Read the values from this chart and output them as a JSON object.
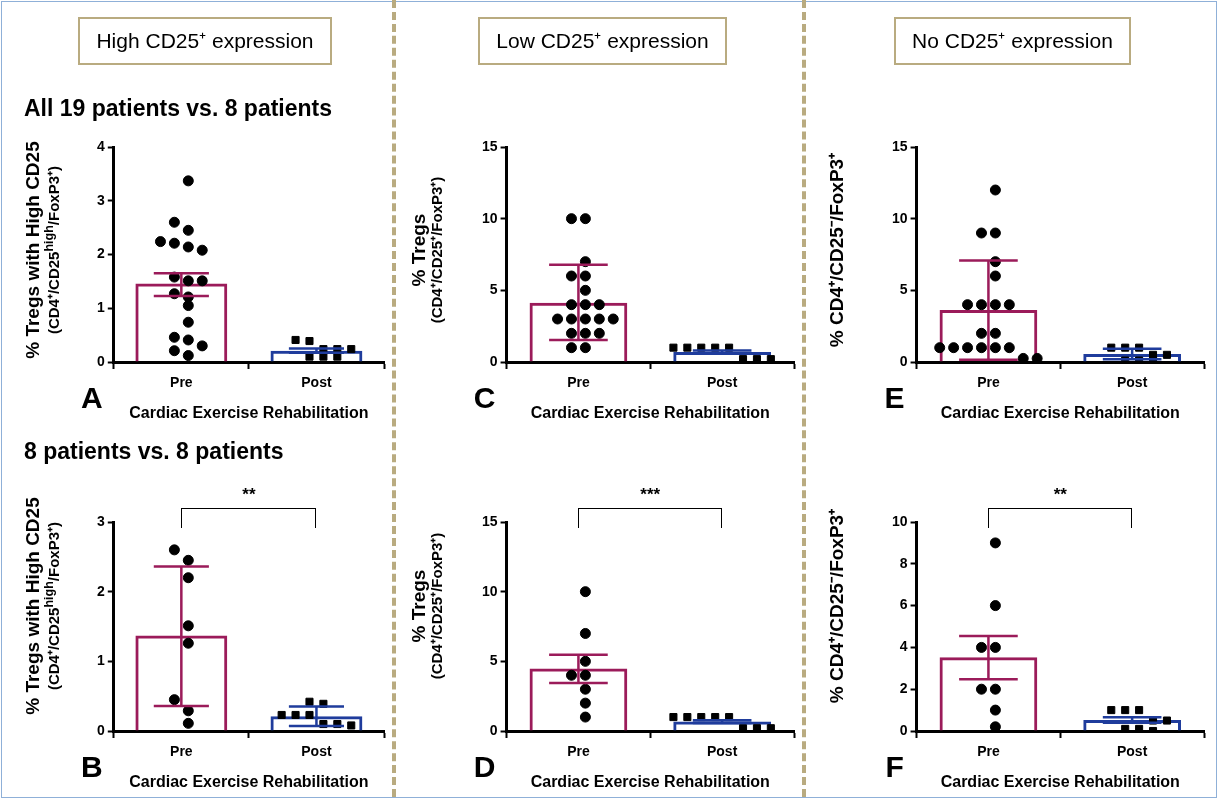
{
  "chart_data": [
    {
      "type": "bar",
      "title": "High CD25⁺ expression",
      "subtitle": "All 19 patients vs. 8 patients",
      "xlabel": "Cardiac Exercise Rehabilitation",
      "ylabel": "% Tregs with High CD25\n(CD4⁺/CD25$^{high}$/FoxP3⁺)",
      "categories": [
        "Pre",
        "Post"
      ],
      "ylim": [
        0,
        4
      ],
      "yticks": [
        0,
        1,
        2,
        3,
        4
      ],
      "annotations": [
        "A"
      ],
      "series": [
        {
          "type": "bar",
          "colors": [
            "#9b1b5a",
            "#1f3c9c"
          ],
          "values": [
            1.46,
            0.21
          ],
          "errors": [
            [
              1.23,
              1.65
            ],
            [
              0.17,
              0.25
            ]
          ]
        },
        {
          "type": "scatter",
          "marker": "circle",
          "color": "#000000",
          "x": [
            "Pre",
            "Pre",
            "Pre",
            "Pre",
            "Pre",
            "Pre",
            "Pre",
            "Pre",
            "Pre",
            "Pre",
            "Pre",
            "Pre",
            "Pre",
            "Pre",
            "Pre",
            "Pre",
            "Pre",
            "Pre",
            "Pre"
          ],
          "values": [
            3.37,
            2.6,
            2.45,
            2.24,
            2.21,
            2.14,
            2.08,
            1.58,
            1.51,
            1.51,
            1.27,
            1.21,
            1.05,
            0.74,
            0.46,
            0.41,
            0.3,
            0.21,
            0.12
          ]
        },
        {
          "type": "scatter",
          "marker": "square",
          "color": "#000000",
          "x": [
            "Post",
            "Post",
            "Post",
            "Post",
            "Post",
            "Post",
            "Post",
            "Post"
          ],
          "values": [
            0.41,
            0.39,
            0.24,
            0.24,
            0.24,
            0.1,
            0.1,
            0.1
          ]
        }
      ]
    },
    {
      "type": "bar",
      "title": "Low CD25⁺ expression",
      "xlabel": "Cardiac Exercise Rehabilitation",
      "ylabel": "% Tregs\n(CD4⁺/CD25⁺/FoxP3⁺)",
      "categories": [
        "Pre",
        "Post"
      ],
      "ylim": [
        0,
        15
      ],
      "yticks": [
        0,
        5,
        10,
        15
      ],
      "annotations": [
        "C"
      ],
      "series": [
        {
          "type": "bar",
          "colors": [
            "#9b1b5a",
            "#1f3c9c"
          ],
          "values": [
            4.14,
            0.7
          ],
          "errors": [
            [
              1.53,
              6.78
            ],
            [
              0.6,
              0.8
            ]
          ]
        },
        {
          "type": "scatter",
          "marker": "circle",
          "color": "#000000",
          "x": [
            "Pre",
            "Pre",
            "Pre",
            "Pre",
            "Pre",
            "Pre",
            "Pre",
            "Pre",
            "Pre",
            "Pre",
            "Pre",
            "Pre",
            "Pre",
            "Pre",
            "Pre",
            "Pre",
            "Pre",
            "Pre",
            "Pre"
          ],
          "values": [
            10,
            10,
            7,
            6,
            6,
            5,
            4,
            4,
            4,
            3,
            3,
            3,
            3,
            3,
            2,
            2,
            2,
            1,
            1
          ]
        },
        {
          "type": "scatter",
          "marker": "square",
          "color": "#000000",
          "x": [
            "Post",
            "Post",
            "Post",
            "Post",
            "Post",
            "Post",
            "Post",
            "Post"
          ],
          "values": [
            1,
            1,
            1,
            1,
            1,
            0.2,
            0.2,
            0.2
          ]
        }
      ]
    },
    {
      "type": "bar",
      "title": "No CD25⁺ expression",
      "xlabel": "Cardiac Exercise Rehabilitation",
      "ylabel": "% CD4⁺/CD25⁻/FoxP3⁺",
      "categories": [
        "Pre",
        "Post"
      ],
      "ylim": [
        0,
        15
      ],
      "yticks": [
        0,
        5,
        10,
        15
      ],
      "annotations": [
        "E"
      ],
      "series": [
        {
          "type": "bar",
          "colors": [
            "#9b1b5a",
            "#1f3c9c"
          ],
          "values": [
            3.63,
            0.56
          ],
          "errors": [
            [
              0.15,
              7.09
            ],
            [
              0.2,
              0.93
            ]
          ]
        },
        {
          "type": "scatter",
          "marker": "circle",
          "color": "#000000",
          "x": [
            "Pre",
            "Pre",
            "Pre",
            "Pre",
            "Pre",
            "Pre",
            "Pre",
            "Pre",
            "Pre",
            "Pre",
            "Pre",
            "Pre",
            "Pre",
            "Pre",
            "Pre",
            "Pre",
            "Pre",
            "Pre",
            "Pre"
          ],
          "values": [
            12,
            9,
            9,
            7,
            6,
            4,
            4,
            4,
            4,
            2,
            2,
            1,
            1,
            1,
            1,
            1,
            1,
            0.25,
            0.25
          ]
        },
        {
          "type": "scatter",
          "marker": "square",
          "color": "#000000",
          "x": [
            "Post",
            "Post",
            "Post",
            "Post",
            "Post",
            "Post",
            "Post",
            "Post"
          ],
          "values": [
            1,
            1,
            1,
            0.5,
            0.5,
            0.1,
            0.1,
            0.1
          ]
        }
      ]
    },
    {
      "type": "bar",
      "subtitle": "8 patients vs. 8 patients",
      "xlabel": "Cardiac Exercise Rehabilitation",
      "ylabel": "% Tregs with High CD25\n(CD4⁺/CD25$^{high}$/FoxP3⁺)",
      "categories": [
        "Pre",
        "Post"
      ],
      "ylim": [
        0,
        3
      ],
      "yticks": [
        0,
        1,
        2,
        3
      ],
      "annotations": [
        "B",
        "**"
      ],
      "series": [
        {
          "type": "bar",
          "colors": [
            "#9b1b5a",
            "#1f3c9c"
          ],
          "values": [
            1.37,
            0.21
          ],
          "errors": [
            [
              0.36,
              2.36
            ],
            [
              0.07,
              0.35
            ]
          ]
        },
        {
          "type": "scatter",
          "marker": "circle",
          "color": "#000000",
          "x": [
            "Pre",
            "Pre",
            "Pre",
            "Pre",
            "Pre",
            "Pre",
            "Pre",
            "Pre"
          ],
          "values": [
            2.6,
            2.45,
            2.2,
            1.51,
            1.26,
            0.45,
            0.29,
            0.11
          ]
        },
        {
          "type": "scatter",
          "marker": "square",
          "color": "#000000",
          "x": [
            "Post",
            "Post",
            "Post",
            "Post",
            "Post",
            "Post",
            "Post",
            "Post"
          ],
          "values": [
            0.42,
            0.39,
            0.23,
            0.23,
            0.23,
            0.1,
            0.08,
            0.1
          ]
        }
      ]
    },
    {
      "type": "bar",
      "xlabel": "Cardiac Exercise Rehabilitation",
      "ylabel": "% Tregs\n(CD4⁺/CD25⁺/FoxP3⁺)",
      "categories": [
        "Pre",
        "Post"
      ],
      "ylim": [
        0,
        15
      ],
      "yticks": [
        0,
        5,
        10,
        15
      ],
      "annotations": [
        "D",
        "***"
      ],
      "series": [
        {
          "type": "bar",
          "colors": [
            "#9b1b5a",
            "#1f3c9c"
          ],
          "values": [
            4.48,
            0.68
          ],
          "errors": [
            [
              3.44,
              5.48
            ],
            [
              0.58,
              0.78
            ]
          ]
        },
        {
          "type": "scatter",
          "marker": "circle",
          "color": "#000000",
          "x": [
            "Pre",
            "Pre",
            "Pre",
            "Pre",
            "Pre",
            "Pre",
            "Pre",
            "Pre"
          ],
          "values": [
            10,
            7,
            5,
            4,
            4,
            3,
            2,
            1
          ]
        },
        {
          "type": "scatter",
          "marker": "square",
          "color": "#000000",
          "x": [
            "Post",
            "Post",
            "Post",
            "Post",
            "Post",
            "Post",
            "Post",
            "Post"
          ],
          "values": [
            1,
            1,
            1,
            1,
            1,
            0.2,
            0.2,
            0.2
          ]
        }
      ]
    },
    {
      "type": "bar",
      "xlabel": "Cardiac Exercise Rehabilitation",
      "ylabel": "% CD4⁺/CD25⁻/FoxP3⁺",
      "categories": [
        "Pre",
        "Post"
      ],
      "ylim": [
        0,
        10
      ],
      "yticks": [
        0,
        2,
        4,
        6,
        8,
        10
      ],
      "annotations": [
        "F",
        "**"
      ],
      "series": [
        {
          "type": "bar",
          "colors": [
            "#9b1b5a",
            "#1f3c9c"
          ],
          "values": [
            3.53,
            0.53
          ],
          "errors": [
            [
              2.48,
              4.54
            ],
            [
              0.4,
              0.66
            ]
          ]
        },
        {
          "type": "scatter",
          "marker": "circle",
          "color": "#000000",
          "x": [
            "Pre",
            "Pre",
            "Pre",
            "Pre",
            "Pre",
            "Pre",
            "Pre",
            "Pre"
          ],
          "values": [
            9,
            6,
            4,
            4,
            2,
            2,
            1,
            0.2
          ]
        },
        {
          "type": "scatter",
          "marker": "square",
          "color": "#000000",
          "x": [
            "Post",
            "Post",
            "Post",
            "Post",
            "Post",
            "Post",
            "Post",
            "Post"
          ],
          "values": [
            1,
            1,
            1,
            0.5,
            0.5,
            0.1,
            0.1,
            0
          ]
        }
      ]
    }
  ]
}
